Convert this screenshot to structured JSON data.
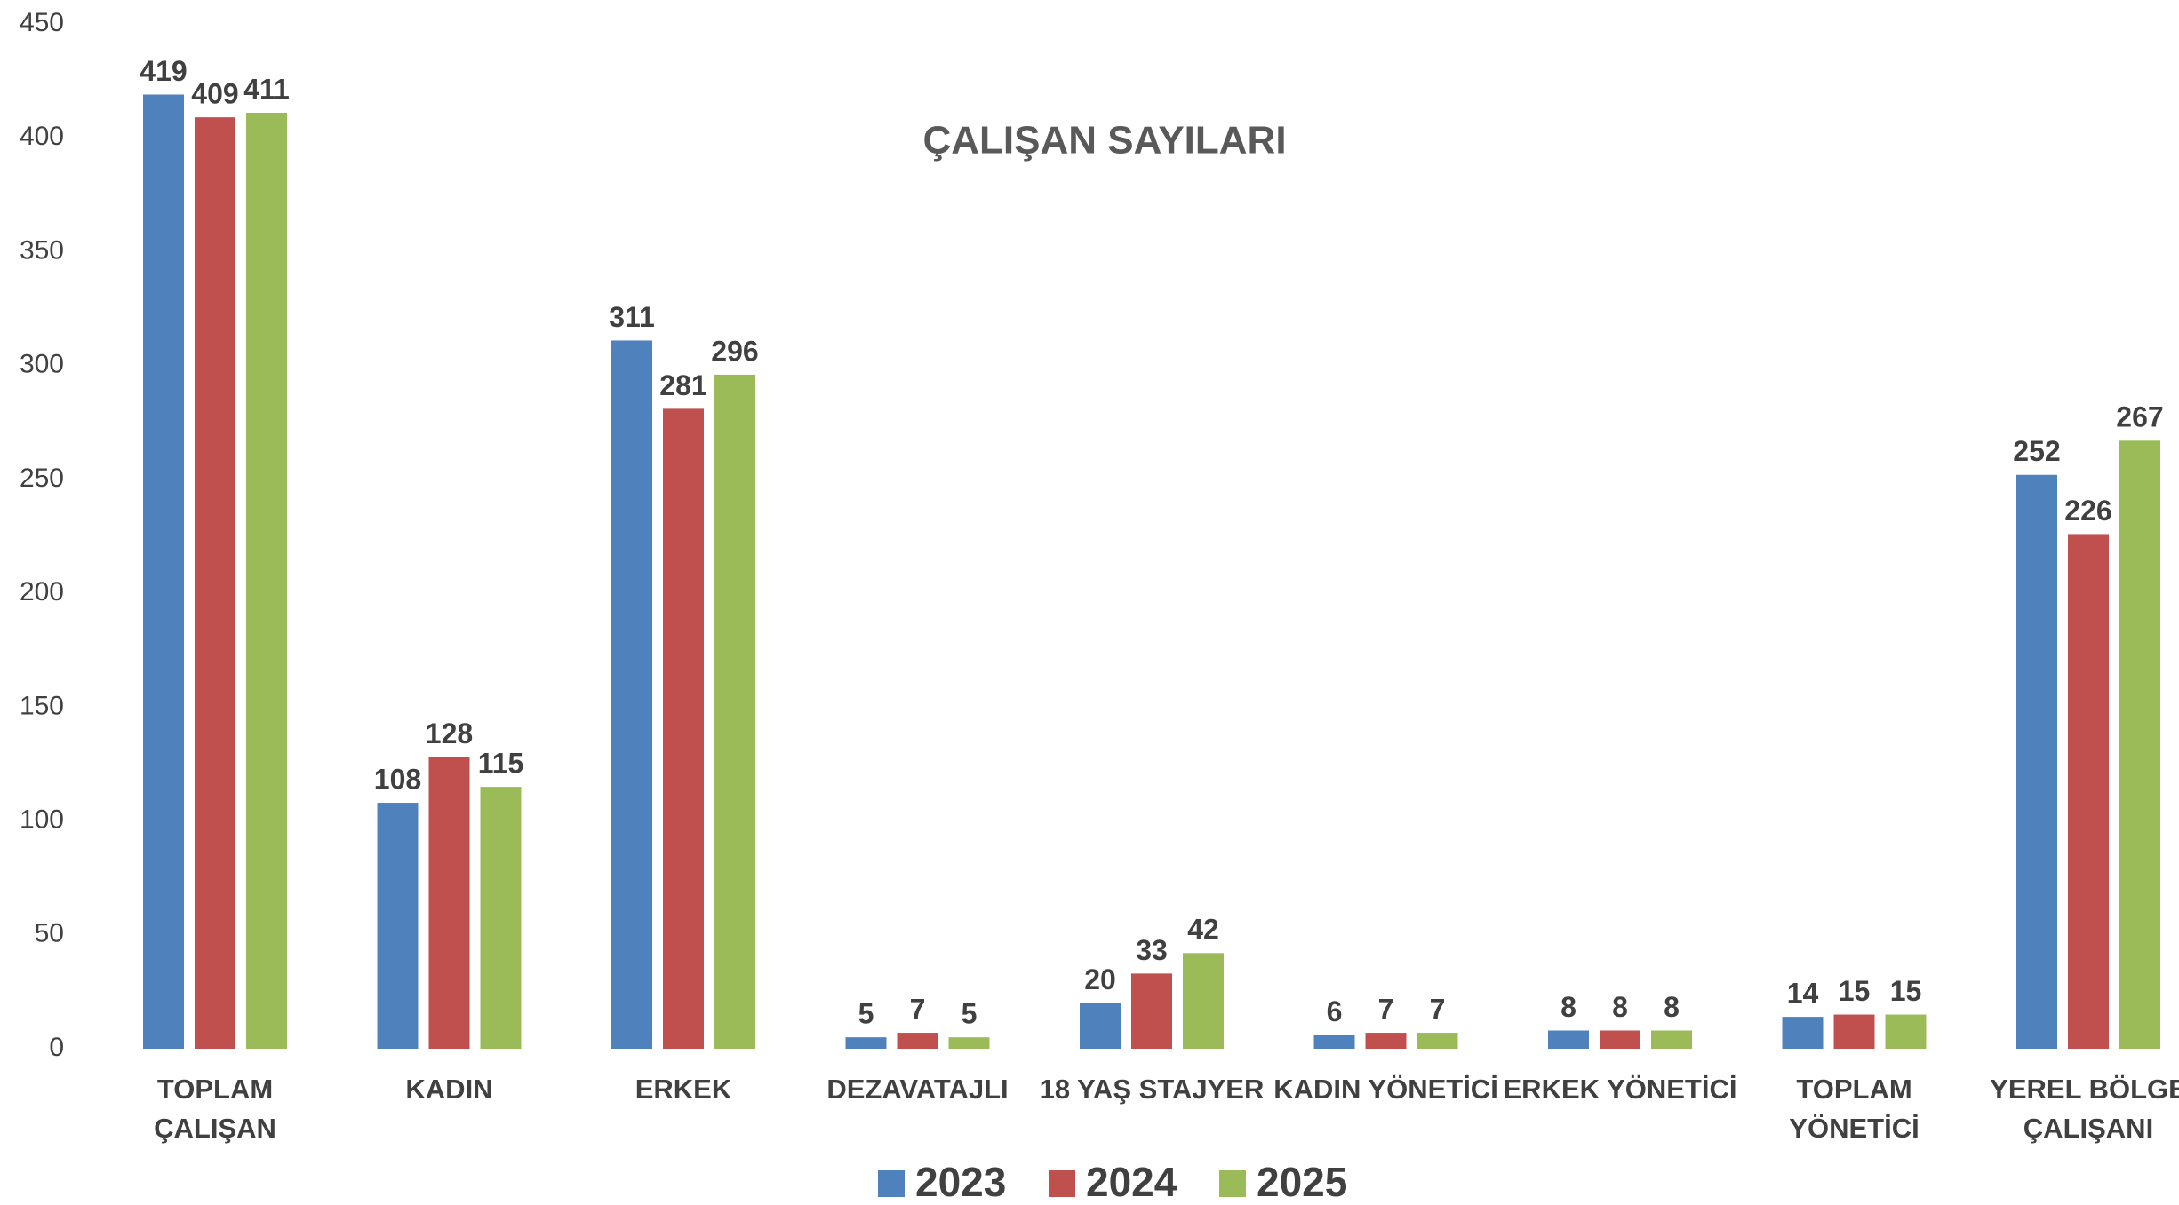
{
  "chart_data": {
    "type": "bar",
    "title": "ÇALIŞAN SAYILARI",
    "categories": [
      [
        "TOPLAM",
        "ÇALIŞAN"
      ],
      [
        "KADIN"
      ],
      [
        "ERKEK"
      ],
      [
        "DEZAVATAJLI"
      ],
      [
        "18 YAŞ STAJYER"
      ],
      [
        "KADIN YÖNETİCİ"
      ],
      [
        "ERKEK YÖNETİCİ"
      ],
      [
        "TOPLAM",
        "YÖNETİCİ"
      ],
      [
        "YEREL BÖLGE",
        "ÇALIŞANI"
      ]
    ],
    "series": [
      {
        "name": "2023",
        "color": "#4f81bd",
        "values": [
          419,
          108,
          311,
          5,
          20,
          6,
          8,
          14,
          252
        ]
      },
      {
        "name": "2024",
        "color": "#c0504d",
        "values": [
          409,
          128,
          281,
          7,
          33,
          7,
          8,
          15,
          226
        ]
      },
      {
        "name": "2025",
        "color": "#9bbb59",
        "values": [
          411,
          115,
          296,
          5,
          42,
          7,
          8,
          15,
          267
        ]
      }
    ],
    "ylim": [
      0,
      450
    ],
    "yticks": [
      0,
      50,
      100,
      150,
      200,
      250,
      300,
      350,
      400,
      450
    ],
    "grid": false,
    "legend": "bottom"
  }
}
